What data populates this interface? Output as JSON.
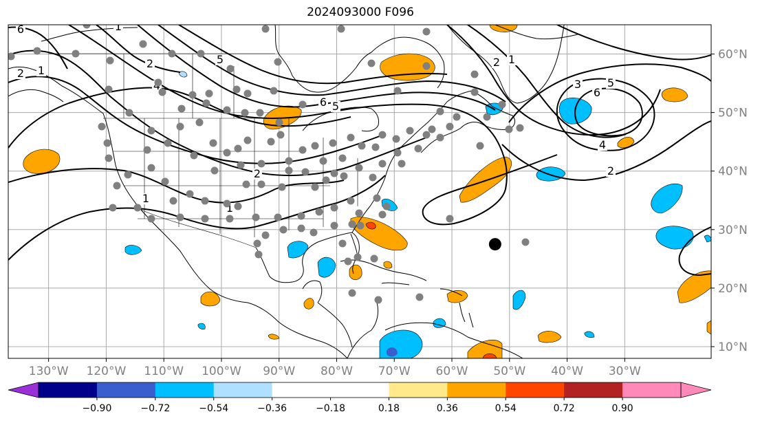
{
  "title": "2024093000 F096",
  "map": {
    "lon_range": [
      -137,
      -15
    ],
    "lat_range": [
      8,
      65
    ],
    "lon_ticks": [
      {
        "lon": -130,
        "label": "130°W"
      },
      {
        "lon": -120,
        "label": "120°W"
      },
      {
        "lon": -110,
        "label": "110°W"
      },
      {
        "lon": -100,
        "label": "100°W"
      },
      {
        "lon": -90,
        "label": "90°W"
      },
      {
        "lon": -80,
        "label": "80°W"
      },
      {
        "lon": -70,
        "label": "70°W"
      },
      {
        "lon": -60,
        "label": "60°W"
      },
      {
        "lon": -50,
        "label": "50°W"
      },
      {
        "lon": -40,
        "label": "40°W"
      },
      {
        "lon": -30,
        "label": "30°W"
      }
    ],
    "lat_ticks": [
      {
        "lat": 60,
        "label": "60°N"
      },
      {
        "lat": 50,
        "label": "50°N"
      },
      {
        "lat": 40,
        "label": "40°N"
      },
      {
        "lat": 30,
        "label": "30°N"
      },
      {
        "lat": 20,
        "label": "20°N"
      },
      {
        "lat": 10,
        "label": "10°N"
      }
    ],
    "grid": true,
    "colors": {
      "gridline": "#a8a8a8",
      "station": "#808080",
      "marker": "#000000",
      "coast": "#000000"
    }
  },
  "contour_labels": [
    "6",
    "2",
    "1",
    "5",
    "4",
    "1",
    "2",
    "6",
    "5",
    "2",
    "1",
    "3",
    "6",
    "5",
    "4",
    "2",
    "1",
    "2",
    "1"
  ],
  "marker": {
    "lon": -52.5,
    "lat": 27.5
  },
  "colorbar": {
    "colors": [
      "#9b30d9",
      "#00008b",
      "#3a5fcd",
      "#00bfff",
      "#b0e0ff",
      "#ffffff",
      "#ffffff",
      "#ffe98a",
      "#ffa500",
      "#ff4500",
      "#b22222",
      "#ff89b8",
      "#ff89b8"
    ],
    "ticks": [
      "−0.90",
      "−0.72",
      "−0.54",
      "−0.36",
      "−0.18",
      "0.18",
      "0.36",
      "0.54",
      "0.72",
      "0.90"
    ]
  }
}
